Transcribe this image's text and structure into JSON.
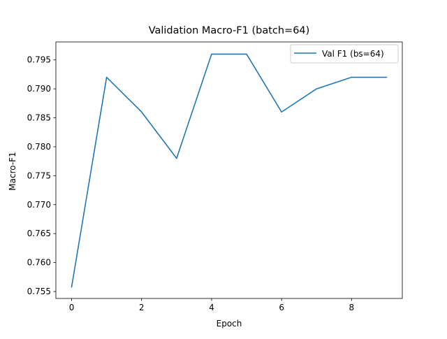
{
  "chart_data": {
    "type": "line",
    "title": "Validation Macro-F1 (batch=64)",
    "xlabel": "Epoch",
    "ylabel": "Macro-F1",
    "xlim": [
      -0.45,
      9.45
    ],
    "ylim": [
      0.7538,
      0.7981
    ],
    "x_ticks": [
      0,
      2,
      4,
      6,
      8
    ],
    "x_tick_labels": [
      "0",
      "2",
      "4",
      "6",
      "8"
    ],
    "y_ticks": [
      0.755,
      0.76,
      0.765,
      0.77,
      0.775,
      0.78,
      0.785,
      0.79,
      0.795
    ],
    "y_tick_labels": [
      "0.755",
      "0.760",
      "0.765",
      "0.770",
      "0.775",
      "0.780",
      "0.785",
      "0.790",
      "0.795"
    ],
    "grid": false,
    "legend_position": "top-right",
    "series": [
      {
        "name": "Val F1 (bs=64)",
        "color": "#1f77b4",
        "x": [
          0,
          1,
          2,
          3,
          4,
          5,
          6,
          7,
          8,
          9
        ],
        "y": [
          0.7558,
          0.792,
          0.786,
          0.778,
          0.796,
          0.796,
          0.786,
          0.79,
          0.792,
          0.792
        ]
      }
    ]
  }
}
